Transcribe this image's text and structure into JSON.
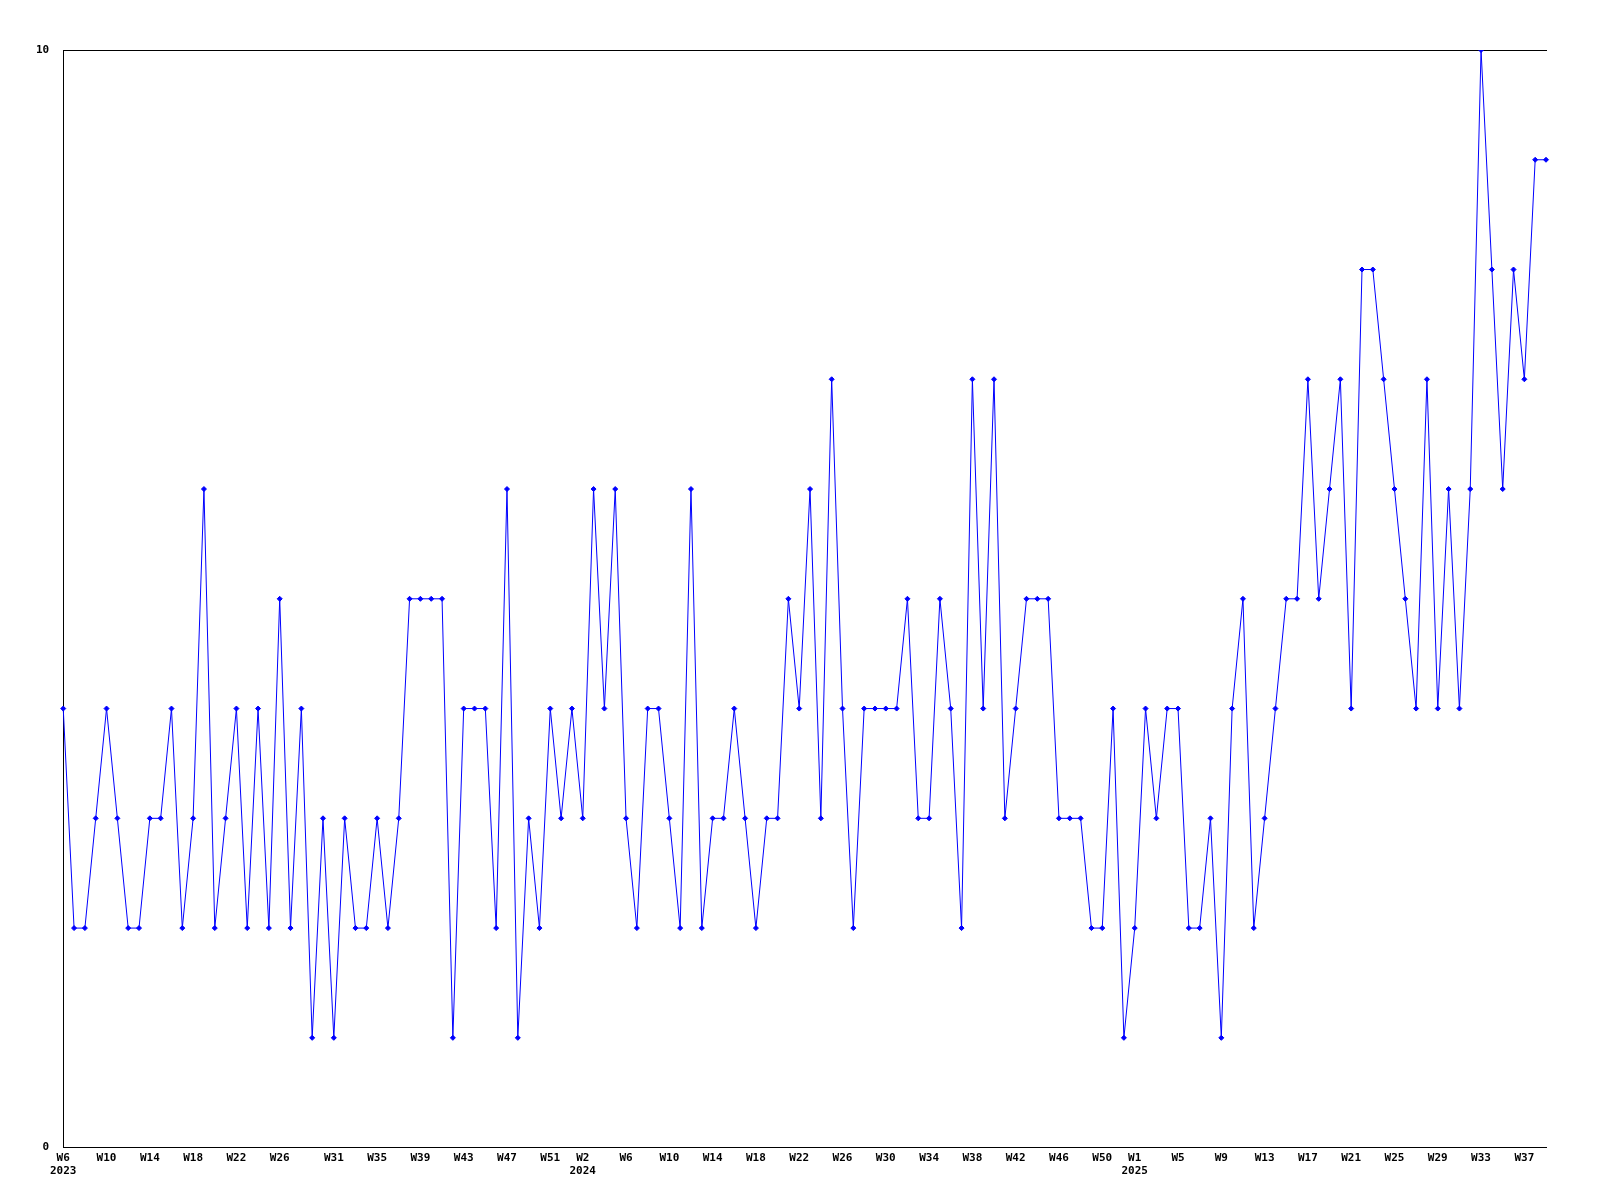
{
  "chart_data": {
    "type": "line",
    "categories": [
      "W6\n2023",
      null,
      null,
      null,
      "W10",
      null,
      null,
      null,
      "W14",
      null,
      null,
      null,
      "W18",
      null,
      null,
      null,
      "W22",
      null,
      null,
      null,
      "W26",
      null,
      null,
      null,
      null,
      "W31",
      null,
      null,
      null,
      "W35",
      null,
      null,
      null,
      "W39",
      null,
      null,
      null,
      "W43",
      null,
      null,
      null,
      "W47",
      null,
      null,
      null,
      "W51",
      null,
      null,
      "W2\n2024",
      null,
      null,
      null,
      "W6",
      null,
      null,
      null,
      "W10",
      null,
      null,
      null,
      "W14",
      null,
      null,
      null,
      "W18",
      null,
      null,
      null,
      "W22",
      null,
      null,
      null,
      "W26",
      null,
      null,
      null,
      "W30",
      null,
      null,
      null,
      "W34",
      null,
      null,
      null,
      "W38",
      null,
      null,
      null,
      "W42",
      null,
      null,
      null,
      "W46",
      null,
      null,
      null,
      "W50",
      null,
      null,
      "W1\n2025",
      null,
      null,
      null,
      "W5",
      null,
      null,
      null,
      "W9",
      null,
      null,
      null,
      "W13",
      null,
      null,
      null,
      "W17",
      null,
      null,
      null,
      "W21",
      null,
      null,
      null,
      "W25",
      null,
      null,
      null,
      "W29",
      null,
      null,
      null,
      "W33",
      null,
      null,
      null,
      "W37",
      null,
      null
    ],
    "series": [
      {
        "color": "#0000ff",
        "values": [
          4,
          2,
          2,
          3,
          4,
          3,
          2,
          2,
          3,
          3,
          4,
          2,
          3,
          6,
          2,
          3,
          4,
          2,
          4,
          2,
          5,
          2,
          4,
          1,
          3,
          1,
          3,
          2,
          2,
          3,
          2,
          3,
          5,
          5,
          5,
          5,
          1,
          4,
          4,
          4,
          2,
          6,
          1,
          3,
          2,
          4,
          3,
          4,
          3,
          6,
          4,
          6,
          3,
          2,
          4,
          4,
          3,
          2,
          6,
          2,
          3,
          3,
          4,
          3,
          2,
          3,
          3,
          5,
          4,
          6,
          3,
          7,
          4,
          2,
          4,
          4,
          4,
          4,
          5,
          3,
          3,
          5,
          4,
          2,
          7,
          4,
          7,
          3,
          4,
          5,
          5,
          5,
          3,
          3,
          3,
          2,
          2,
          4,
          1,
          2,
          4,
          3,
          4,
          4,
          2,
          2,
          3,
          1,
          4,
          5,
          2,
          3,
          4,
          5,
          5,
          7,
          5,
          6,
          7,
          4,
          8,
          8,
          7,
          6,
          5,
          4,
          7,
          4,
          6,
          4,
          6,
          10,
          8,
          6,
          8,
          7,
          9,
          9
        ]
      }
    ],
    "ylim": [
      0,
      10
    ],
    "yticks": [
      0,
      10
    ],
    "marker": "diamond",
    "line_style": "solid"
  }
}
